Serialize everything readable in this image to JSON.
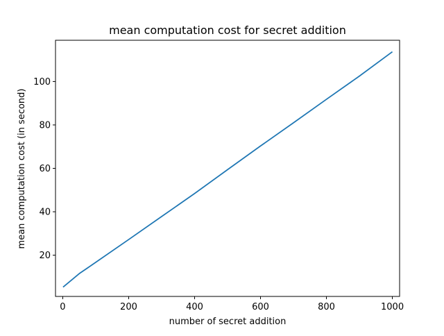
{
  "chart_data": {
    "type": "line",
    "title": "mean computation cost for secret addition",
    "xlabel": "number of secret addition",
    "ylabel": "mean computation cost (in second)",
    "xlim": [
      -22,
      1022
    ],
    "ylim": [
      1.0,
      119.0
    ],
    "xticks": [
      0,
      200,
      400,
      600,
      800,
      1000
    ],
    "yticks": [
      20,
      40,
      60,
      80,
      100
    ],
    "grid": false,
    "legend": "none",
    "series": [
      {
        "color": "#1f77b4",
        "x": [
          1,
          50,
          100,
          200,
          300,
          400,
          500,
          600,
          700,
          800,
          900,
          1000
        ],
        "y": [
          5.3,
          11.5,
          16.7,
          27.2,
          37.8,
          48.4,
          59.4,
          70.3,
          81.0,
          91.8,
          102.5,
          113.7
        ]
      }
    ]
  }
}
